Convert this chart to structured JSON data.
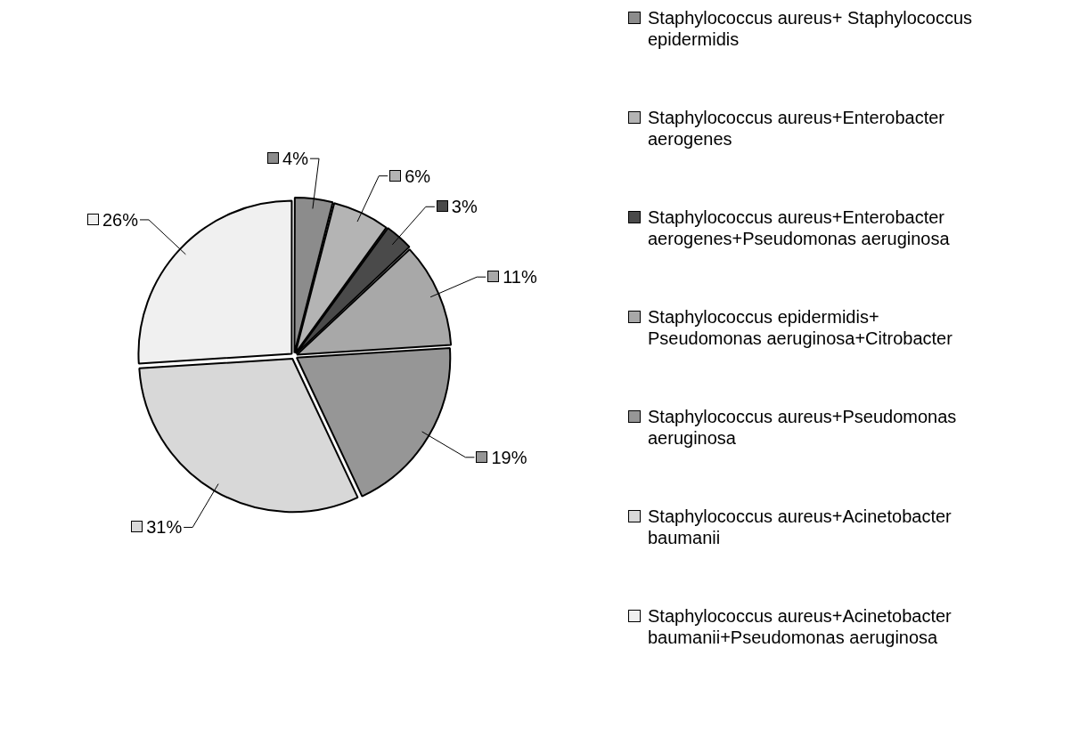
{
  "chart_data": {
    "type": "pie",
    "categories": [
      "Staphylococcus aureus+ Staphylococcus epidermidis",
      "Staphylococcus aureus+Enterobacter aerogenes",
      "Staphylococcus aureus+Enterobacter aerogenes+Pseudomonas aeruginosa",
      "Staphylococcus epidermidis+ Pseudomonas aeruginosa+Citrobacter",
      "Staphylococcus aureus+Pseudomonas aeruginosa",
      "Staphylococcus aureus+Acinetobacter baumanii",
      "Staphylococcus aureus+Acinetobacter baumanii+Pseudomonas aeruginosa"
    ],
    "values": [
      4,
      6,
      3,
      11,
      19,
      31,
      26
    ],
    "value_labels": [
      "4%",
      "6%",
      "3%",
      "11%",
      "19%",
      "31%",
      "26%"
    ],
    "colors": [
      "#8c8c8c",
      "#b4b4b4",
      "#4a4a4a",
      "#a8a8a8",
      "#969696",
      "#d8d8d8",
      "#f0f0f0"
    ],
    "legend": "right"
  }
}
